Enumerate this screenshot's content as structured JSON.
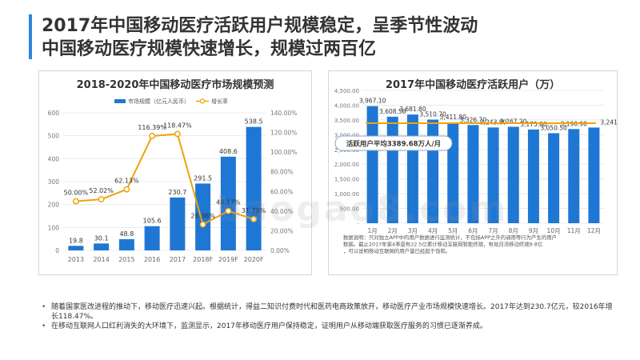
{
  "title": {
    "line1": "2017年中国移动医疗活跃用户规模稳定，呈季节性波动",
    "line2": "中国移动医疗规模快速增长，规模过两百亿"
  },
  "colors": {
    "bar": "#1f77d4",
    "line": "#f0a30a",
    "accent": "#2e86de"
  },
  "chart_data": [
    {
      "type": "bar",
      "title": "2018-2020年中国移动医疗市场规模预测",
      "categories": [
        "2013",
        "2014",
        "2015",
        "2016",
        "2017",
        "2018F",
        "2019F",
        "2020F"
      ],
      "legend": [
        "市场规模（亿元人民币）",
        "增长率"
      ],
      "legend_position": "top-right",
      "series": [
        {
          "name": "市场规模（亿元人民币）",
          "type": "bar",
          "values": [
            19.8,
            30.1,
            48.8,
            105.6,
            230.7,
            291.5,
            408.6,
            538.5
          ],
          "labels": [
            "19.8",
            "30.1",
            "48.8",
            "105.6",
            "230.7",
            "291.5",
            "408.6",
            "538.5"
          ]
        },
        {
          "name": "增长率",
          "type": "line",
          "values": [
            50.0,
            52.02,
            62.13,
            116.39,
            118.47,
            26.36,
            40.17,
            31.79
          ],
          "labels": [
            "50.00%",
            "52.02%",
            "62.13%",
            "116.39%",
            "118.47%",
            "26.36%",
            "40.17%",
            "31.79%"
          ]
        }
      ],
      "y_left": {
        "ticks": [
          "0",
          "100",
          "200",
          "300",
          "400",
          "500",
          "600"
        ],
        "range": [
          0,
          600
        ]
      },
      "y_right": {
        "ticks": [
          "0.00%",
          "20.00%",
          "40.00%",
          "60.00%",
          "80.00%",
          "100.00%",
          "120.00%",
          "140.00%"
        ],
        "range": [
          0,
          140
        ]
      },
      "grid": true
    },
    {
      "type": "bar",
      "title": "2017年中国移动医疗活跃用户（万）",
      "categories": [
        "1月",
        "2月",
        "3月",
        "4月",
        "5月",
        "6月",
        "7月",
        "8月",
        "9月",
        "10月",
        "11月",
        "12月"
      ],
      "values": [
        3967.1,
        3608.5,
        3681.8,
        3510.7,
        3411.8,
        3326.7,
        3243.8,
        3267.2,
        3175.6,
        3050.5,
        3190.9,
        3241.5
      ],
      "labels": [
        "3,967.10",
        "3,608.50",
        "3,681.80",
        "3,510.70",
        "3,411.80",
        "3,326.70",
        "3,243.80",
        "3,267.20",
        "3,175.60",
        "3,050.50",
        "3,190.90",
        "3,241.50"
      ],
      "y_ticks": [
        "-",
        "500.00",
        "1,000.00",
        "1,500.00",
        "2,000.00",
        "2,500.00",
        "3,000.00",
        "3,500.00",
        "4,000.00",
        "4,500.00"
      ],
      "ylim": [
        0,
        4500
      ],
      "average": {
        "value": 3389.68,
        "label": "活跃用户平均3389.68万人/月"
      },
      "note": "数据说明：只对独立APP中的用户数据进行监测统计，不包括APP之外的调用等行为产生的用户数据。截止2017年第4季度有22.5亿累计移动互联网智能终端，有效月活移动终端9.8亿，可以说明移动互联网的用户量已经趋于饱和。",
      "grid": true
    }
  ],
  "bullets": [
    "随着国家医改进程的推动下，移动医疗迅速兴起。根据统计，得益二知识付费时代和医药电商政策放开，移动医疗产业市场规模快速增长。2017年达到230.7亿元，较2016年增长118.47%。",
    "在移动互联网人口红利消失的大环境下，监测显示，2017年移动医疗用户保持稳定，证明用户从移动端获取医疗服务的习惯已逐渐养成。"
  ],
  "watermark": "baogao8.com"
}
